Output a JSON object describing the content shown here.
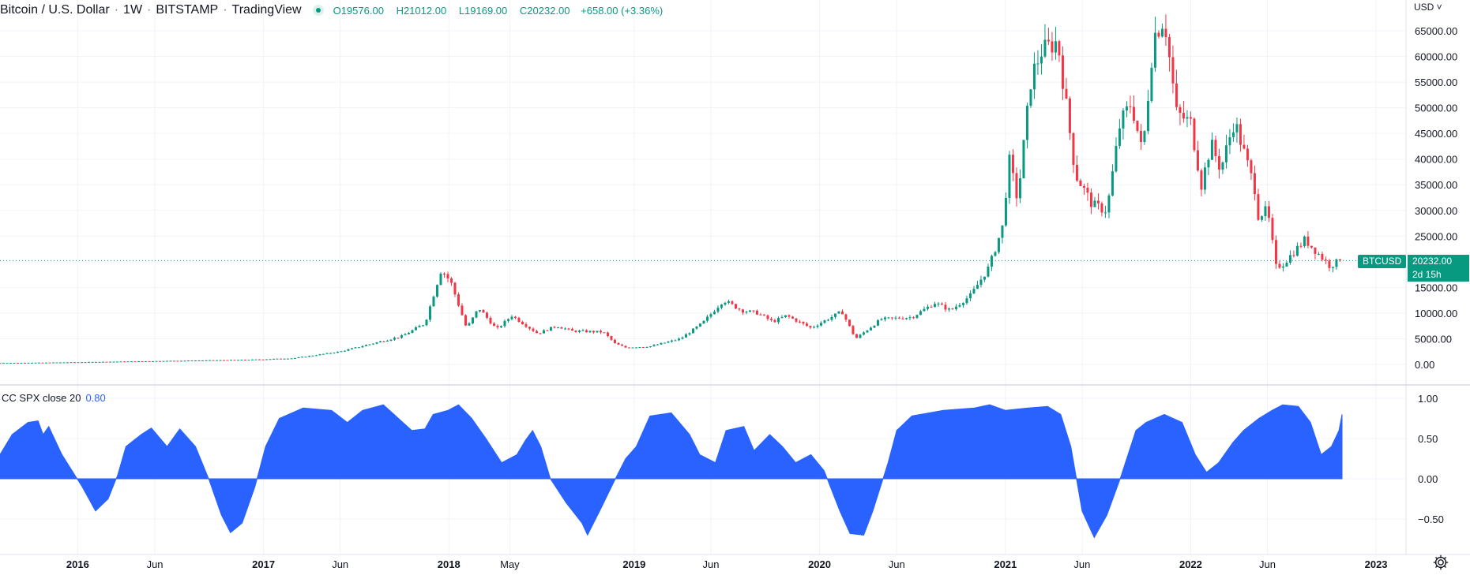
{
  "header": {
    "symbol_title": "Bitcoin / U.S. Dollar",
    "interval": "1W",
    "exchange": "BITSTAMP",
    "source": "TradingView",
    "ohlc": {
      "o_label": "O",
      "o": "19576.00",
      "h_label": "H",
      "h": "21012.00",
      "l_label": "L",
      "l": "19169.00",
      "c_label": "C",
      "c": "20232.00",
      "change": "+658.00 (+3.36%)"
    },
    "status_icon": "market-open-dot-icon"
  },
  "currency_label": "USD",
  "last_price": {
    "symbol_label": "BTCUSD",
    "price_label": "20232.00",
    "countdown": "2d 15h",
    "value": 20232
  },
  "indicator": {
    "name": "CC SPX close 20",
    "value_label": "0.80"
  },
  "colors": {
    "up": "#089981",
    "down": "#f23645",
    "indicator_fill": "#2962ff",
    "last_price_line": "#089981",
    "grid": "#f0f3fa"
  },
  "chart_data": [
    {
      "type": "candlestick",
      "title": "Bitcoin / U.S. Dollar · 1W · BITSTAMP",
      "x_range": [
        "2015-08-01",
        "2023-03-01"
      ],
      "ylim": [
        -3000,
        70000
      ],
      "y_ticks": [
        0,
        5000,
        10000,
        15000,
        20000,
        25000,
        30000,
        35000,
        40000,
        45000,
        50000,
        55000,
        60000,
        65000
      ],
      "y_tick_labels": [
        "0.00",
        "5000.00",
        "10000.00",
        "15000.00",
        "20000.00",
        "25000.00",
        "30000.00",
        "35000.00",
        "40000.00",
        "45000.00",
        "50000.00",
        "55000.00",
        "60000.00",
        "65000.00"
      ],
      "x_tick_labels": [
        "2016",
        "Jun",
        "2017",
        "Jun",
        "2018",
        "May",
        "2019",
        "Jun",
        "2020",
        "Jun",
        "2021",
        "Jun",
        "2022",
        "Jun",
        "2023"
      ],
      "x_tick_dates": [
        "2016-01-01",
        "2016-06-01",
        "2017-01-01",
        "2017-06-01",
        "2018-01-01",
        "2018-05-01",
        "2019-01-01",
        "2019-06-01",
        "2020-01-01",
        "2020-06-01",
        "2021-01-01",
        "2021-06-01",
        "2022-01-01",
        "2022-06-01",
        "2023-01-01"
      ],
      "close_path": [
        [
          "2015-08-01",
          280
        ],
        [
          "2015-11-01",
          350
        ],
        [
          "2016-01-01",
          430
        ],
        [
          "2016-06-01",
          650
        ],
        [
          "2016-12-01",
          900
        ],
        [
          "2017-03-01",
          1200
        ],
        [
          "2017-06-01",
          2500
        ],
        [
          "2017-08-01",
          4000
        ],
        [
          "2017-10-01",
          5500
        ],
        [
          "2017-11-15",
          8000
        ],
        [
          "2017-12-17",
          18500
        ],
        [
          "2018-01-05",
          16000
        ],
        [
          "2018-02-05",
          7000
        ],
        [
          "2018-03-01",
          11000
        ],
        [
          "2018-04-05",
          6800
        ],
        [
          "2018-05-05",
          9500
        ],
        [
          "2018-06-25",
          6000
        ],
        [
          "2018-08-01",
          7500
        ],
        [
          "2018-09-01",
          6500
        ],
        [
          "2018-11-01",
          6300
        ],
        [
          "2018-11-25",
          4000
        ],
        [
          "2018-12-15",
          3300
        ],
        [
          "2019-02-01",
          3500
        ],
        [
          "2019-04-02",
          5000
        ],
        [
          "2019-05-15",
          8000
        ],
        [
          "2019-06-26",
          12500
        ],
        [
          "2019-08-01",
          10500
        ],
        [
          "2019-09-01",
          10000
        ],
        [
          "2019-10-01",
          8300
        ],
        [
          "2019-10-28",
          9500
        ],
        [
          "2019-12-15",
          7100
        ],
        [
          "2020-02-14",
          10300
        ],
        [
          "2020-03-12",
          5000
        ],
        [
          "2020-05-01",
          8800
        ],
        [
          "2020-07-01",
          9200
        ],
        [
          "2020-08-15",
          12000
        ],
        [
          "2020-09-15",
          10500
        ],
        [
          "2020-10-25",
          13500
        ],
        [
          "2020-11-30",
          19000
        ],
        [
          "2020-12-27",
          27000
        ],
        [
          "2021-01-08",
          40000
        ],
        [
          "2021-01-25",
          32000
        ],
        [
          "2021-02-21",
          56000
        ],
        [
          "2021-03-13",
          61000
        ],
        [
          "2021-04-14",
          63000
        ],
        [
          "2021-05-19",
          37000
        ],
        [
          "2021-06-22",
          31000
        ],
        [
          "2021-07-20",
          30000
        ],
        [
          "2021-08-15",
          47000
        ],
        [
          "2021-09-06",
          51000
        ],
        [
          "2021-09-28",
          41000
        ],
        [
          "2021-10-20",
          64000
        ],
        [
          "2021-11-10",
          67500
        ],
        [
          "2021-12-04",
          49000
        ],
        [
          "2022-01-01",
          47000
        ],
        [
          "2022-01-22",
          35000
        ],
        [
          "2022-02-10",
          43000
        ],
        [
          "2022-03-01",
          38000
        ],
        [
          "2022-03-28",
          47500
        ],
        [
          "2022-05-08",
          34000
        ],
        [
          "2022-05-12",
          29000
        ],
        [
          "2022-06-01",
          30000
        ],
        [
          "2022-06-18",
          19000
        ],
        [
          "2022-07-01",
          19500
        ],
        [
          "2022-08-14",
          24300
        ],
        [
          "2022-09-10",
          21500
        ],
        [
          "2022-10-01",
          19300
        ],
        [
          "2022-10-26",
          20232
        ]
      ]
    },
    {
      "type": "area",
      "title": "CC SPX close 20",
      "ylim": [
        -0.78,
        1.07
      ],
      "y_ticks": [
        -0.5,
        0.0,
        0.5,
        1.0
      ],
      "y_tick_labels": [
        "−0.50",
        "0.00",
        "0.50",
        "1.00"
      ],
      "series": [
        {
          "name": "CC SPX close 20",
          "points": [
            [
              "2015-08-01",
              0.3
            ],
            [
              "2015-08-25",
              0.55
            ],
            [
              "2015-09-25",
              0.7
            ],
            [
              "2015-10-15",
              0.72
            ],
            [
              "2015-10-25",
              0.55
            ],
            [
              "2015-11-05",
              0.65
            ],
            [
              "2015-12-01",
              0.3
            ],
            [
              "2016-01-10",
              -0.1
            ],
            [
              "2016-02-05",
              -0.4
            ],
            [
              "2016-03-01",
              -0.25
            ],
            [
              "2016-03-20",
              0.05
            ],
            [
              "2016-04-05",
              0.4
            ],
            [
              "2016-05-05",
              0.55
            ],
            [
              "2016-05-25",
              0.63
            ],
            [
              "2016-06-25",
              0.4
            ],
            [
              "2016-07-20",
              0.62
            ],
            [
              "2016-08-20",
              0.4
            ],
            [
              "2016-09-15",
              0.0
            ],
            [
              "2016-10-10",
              -0.45
            ],
            [
              "2016-10-28",
              -0.67
            ],
            [
              "2016-11-20",
              -0.55
            ],
            [
              "2016-12-15",
              -0.1
            ],
            [
              "2017-01-05",
              0.4
            ],
            [
              "2017-02-01",
              0.75
            ],
            [
              "2017-03-20",
              0.88
            ],
            [
              "2017-05-15",
              0.85
            ],
            [
              "2017-06-15",
              0.7
            ],
            [
              "2017-07-15",
              0.85
            ],
            [
              "2017-08-25",
              0.92
            ],
            [
              "2017-09-15",
              0.8
            ],
            [
              "2017-10-20",
              0.6
            ],
            [
              "2017-11-15",
              0.62
            ],
            [
              "2017-12-01",
              0.8
            ],
            [
              "2017-12-30",
              0.85
            ],
            [
              "2018-01-20",
              0.92
            ],
            [
              "2018-02-15",
              0.75
            ],
            [
              "2018-03-15",
              0.5
            ],
            [
              "2018-04-15",
              0.2
            ],
            [
              "2018-05-15",
              0.3
            ],
            [
              "2018-06-01",
              0.48
            ],
            [
              "2018-06-15",
              0.6
            ],
            [
              "2018-07-01",
              0.4
            ],
            [
              "2018-07-20",
              0.0
            ],
            [
              "2018-08-20",
              -0.3
            ],
            [
              "2018-09-20",
              -0.55
            ],
            [
              "2018-10-01",
              -0.7
            ],
            [
              "2018-10-25",
              -0.4
            ],
            [
              "2018-11-25",
              0.0
            ],
            [
              "2018-12-15",
              0.25
            ],
            [
              "2019-01-05",
              0.4
            ],
            [
              "2019-02-01",
              0.78
            ],
            [
              "2019-03-15",
              0.82
            ],
            [
              "2019-04-20",
              0.55
            ],
            [
              "2019-05-10",
              0.3
            ],
            [
              "2019-06-10",
              0.2
            ],
            [
              "2019-07-01",
              0.6
            ],
            [
              "2019-08-05",
              0.65
            ],
            [
              "2019-08-25",
              0.35
            ],
            [
              "2019-09-25",
              0.55
            ],
            [
              "2019-10-20",
              0.4
            ],
            [
              "2019-11-15",
              0.2
            ],
            [
              "2019-12-15",
              0.3
            ],
            [
              "2020-01-10",
              0.1
            ],
            [
              "2020-02-10",
              -0.4
            ],
            [
              "2020-03-01",
              -0.68
            ],
            [
              "2020-03-28",
              -0.7
            ],
            [
              "2020-04-15",
              -0.4
            ],
            [
              "2020-05-15",
              0.2
            ],
            [
              "2020-06-01",
              0.6
            ],
            [
              "2020-07-01",
              0.78
            ],
            [
              "2020-09-01",
              0.85
            ],
            [
              "2020-11-01",
              0.88
            ],
            [
              "2020-12-01",
              0.92
            ],
            [
              "2021-01-01",
              0.85
            ],
            [
              "2021-02-15",
              0.88
            ],
            [
              "2021-03-25",
              0.9
            ],
            [
              "2021-04-20",
              0.8
            ],
            [
              "2021-05-10",
              0.4
            ],
            [
              "2021-06-01",
              -0.4
            ],
            [
              "2021-06-25",
              -0.73
            ],
            [
              "2021-07-20",
              -0.45
            ],
            [
              "2021-08-15",
              0.0
            ],
            [
              "2021-09-15",
              0.6
            ],
            [
              "2021-10-05",
              0.7
            ],
            [
              "2021-11-10",
              0.8
            ],
            [
              "2021-12-15",
              0.7
            ],
            [
              "2022-01-10",
              0.3
            ],
            [
              "2022-02-01",
              0.08
            ],
            [
              "2022-02-25",
              0.2
            ],
            [
              "2022-03-25",
              0.45
            ],
            [
              "2022-04-15",
              0.6
            ],
            [
              "2022-05-15",
              0.75
            ],
            [
              "2022-06-10",
              0.85
            ],
            [
              "2022-07-01",
              0.92
            ],
            [
              "2022-08-01",
              0.9
            ],
            [
              "2022-08-25",
              0.7
            ],
            [
              "2022-09-15",
              0.3
            ],
            [
              "2022-10-05",
              0.4
            ],
            [
              "2022-10-20",
              0.6
            ],
            [
              "2022-10-26",
              0.8
            ]
          ]
        }
      ]
    }
  ]
}
